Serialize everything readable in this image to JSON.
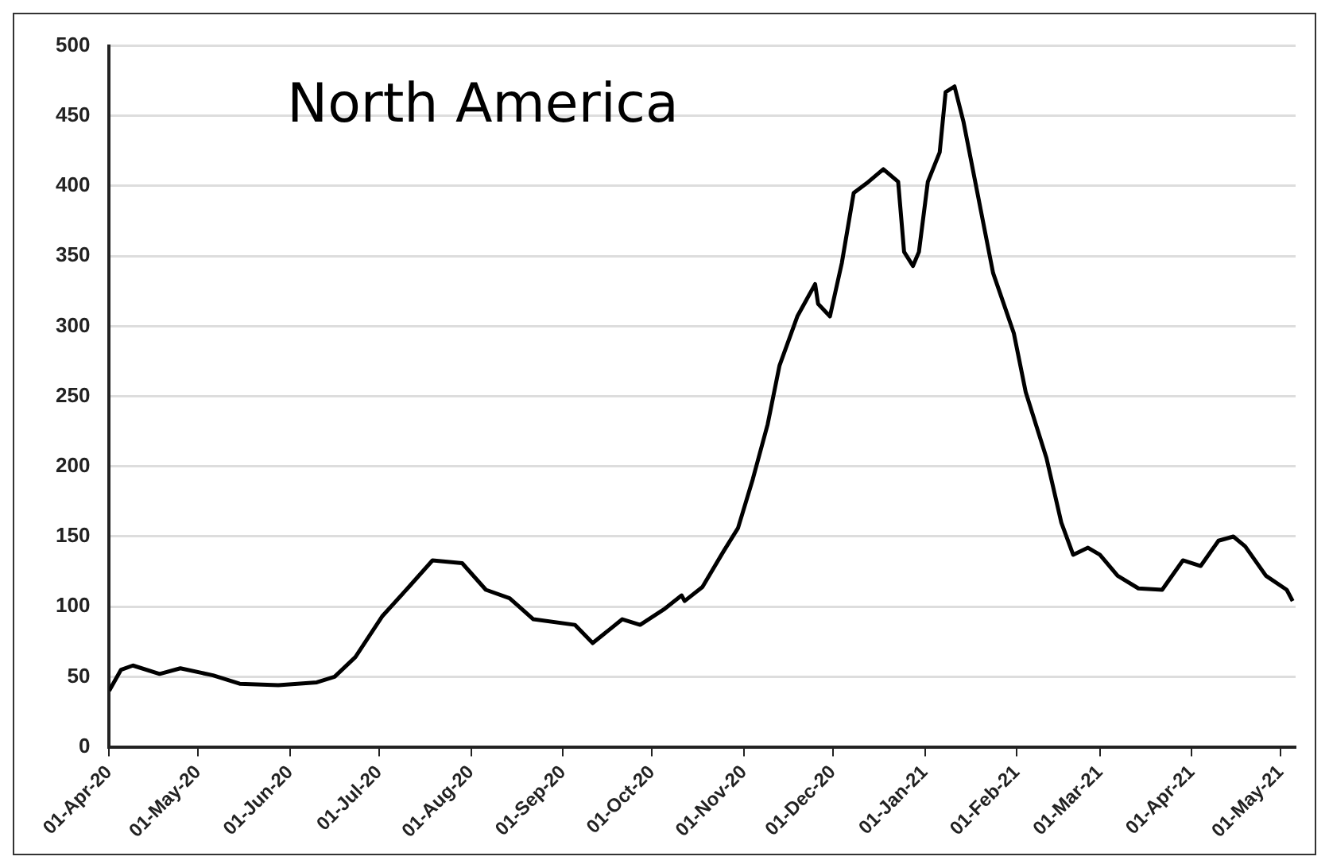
{
  "chart_data": {
    "type": "line",
    "title": "North America",
    "x": [
      "2020-04-01",
      "2020-04-05",
      "2020-04-09",
      "2020-04-18",
      "2020-04-25",
      "2020-05-06",
      "2020-05-15",
      "2020-05-28",
      "2020-06-10",
      "2020-06-16",
      "2020-06-23",
      "2020-07-02",
      "2020-07-11",
      "2020-07-19",
      "2020-07-29",
      "2020-08-06",
      "2020-08-14",
      "2020-08-22",
      "2020-09-05",
      "2020-09-11",
      "2020-09-21",
      "2020-09-27",
      "2020-10-05",
      "2020-10-11",
      "2020-10-12",
      "2020-10-18",
      "2020-10-25",
      "2020-10-30",
      "2020-11-04",
      "2020-11-09",
      "2020-11-13",
      "2020-11-19",
      "2020-11-25",
      "2020-11-26",
      "2020-11-30",
      "2020-12-04",
      "2020-12-08",
      "2020-12-13",
      "2020-12-18",
      "2020-12-23",
      "2020-12-25",
      "2020-12-28",
      "2020-12-30",
      "2021-01-02",
      "2021-01-06",
      "2021-01-08",
      "2021-01-11",
      "2021-01-14",
      "2021-01-19",
      "2021-01-24",
      "2021-01-31",
      "2021-02-04",
      "2021-02-11",
      "2021-02-16",
      "2021-02-20",
      "2021-02-25",
      "2021-03-01",
      "2021-03-07",
      "2021-03-14",
      "2021-03-22",
      "2021-03-29",
      "2021-04-04",
      "2021-04-10",
      "2021-04-15",
      "2021-04-19",
      "2021-04-26",
      "2021-05-03",
      "2021-05-05"
    ],
    "series": [
      {
        "color": "#000000",
        "values": [
          40,
          55,
          58,
          52,
          56,
          51,
          45,
          44,
          46,
          50,
          64,
          93,
          114,
          133,
          131,
          112,
          106,
          91,
          87,
          74,
          91,
          87,
          98,
          108,
          104,
          114,
          139,
          156,
          191,
          230,
          272,
          307,
          330,
          316,
          307,
          345,
          395,
          403,
          412,
          403,
          353,
          343,
          353,
          403,
          424,
          467,
          471,
          446,
          392,
          338,
          295,
          253,
          206,
          160,
          137,
          142,
          137,
          122,
          113,
          112,
          133,
          129,
          147,
          150,
          143,
          122,
          112,
          104
        ]
      }
    ],
    "xlim": [
      "2020-04-01",
      "2021-05-06"
    ],
    "xticks": [
      {
        "value": "2020-04-01",
        "label": "01-Apr-20"
      },
      {
        "value": "2020-05-01",
        "label": "01-May-20"
      },
      {
        "value": "2020-06-01",
        "label": "01-Jun-20"
      },
      {
        "value": "2020-07-01",
        "label": "01-Jul-20"
      },
      {
        "value": "2020-08-01",
        "label": "01-Aug-20"
      },
      {
        "value": "2020-09-01",
        "label": "01-Sep-20"
      },
      {
        "value": "2020-10-01",
        "label": "01-Oct-20"
      },
      {
        "value": "2020-11-01",
        "label": "01-Nov-20"
      },
      {
        "value": "2020-12-01",
        "label": "01-Dec-20"
      },
      {
        "value": "2021-01-01",
        "label": "01-Jan-21"
      },
      {
        "value": "2021-02-01",
        "label": "01-Feb-21"
      },
      {
        "value": "2021-03-01",
        "label": "01-Mar-21"
      },
      {
        "value": "2021-04-01",
        "label": "01-Apr-21"
      },
      {
        "value": "2021-05-01",
        "label": "01-May-21"
      }
    ],
    "ylim": [
      0,
      500
    ],
    "yticks": [
      0,
      50,
      100,
      150,
      200,
      250,
      300,
      350,
      400,
      450,
      500
    ],
    "grid": "y",
    "legend": false,
    "marker": "none",
    "line_style": "solid"
  }
}
